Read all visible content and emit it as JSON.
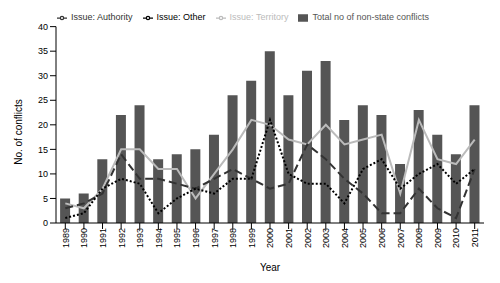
{
  "chart_data": {
    "type": "bar",
    "categories": [
      "1989",
      "1990",
      "1991",
      "1992",
      "1993",
      "1994",
      "1995",
      "1996",
      "1997",
      "1998",
      "1999",
      "2000",
      "2001",
      "2002",
      "2003",
      "2004",
      "2005",
      "2006",
      "2007",
      "2008",
      "2009",
      "2010",
      "2011"
    ],
    "series": [
      {
        "name": "Total no of non-state conflicts",
        "type": "bar",
        "color": "#555555",
        "values": [
          5,
          6,
          13,
          22,
          24,
          13,
          14,
          15,
          18,
          26,
          29,
          35,
          26,
          31,
          33,
          21,
          24,
          22,
          12,
          23,
          18,
          14,
          24
        ]
      },
      {
        "name": "Issue: Territory",
        "type": "line",
        "line_style": "solid",
        "color": "#bbbbbb",
        "values": [
          4,
          3,
          7,
          15,
          15,
          11,
          11,
          5,
          10,
          15,
          21,
          20,
          17,
          16,
          20,
          16,
          17,
          18,
          6,
          21,
          13,
          12,
          17
        ]
      },
      {
        "name": "Issue: Authority",
        "type": "line",
        "line_style": "dashed",
        "color": "#333333",
        "values": [
          3,
          4,
          6,
          14,
          9,
          9,
          8,
          7,
          9,
          11,
          9,
          7,
          8,
          16,
          13,
          9,
          6,
          2,
          2,
          7,
          3,
          1,
          11
        ]
      },
      {
        "name": "Issue: Other",
        "type": "line",
        "line_style": "dotted",
        "color": "#000000",
        "values": [
          1,
          2,
          7,
          9,
          8,
          2,
          5,
          7,
          6,
          9,
          9,
          21,
          10,
          8,
          8,
          4,
          11,
          13,
          7,
          10,
          12,
          8,
          11
        ]
      }
    ],
    "x_label": "Year",
    "y_label": "No. of conflicts",
    "ylim": [
      0,
      40
    ],
    "yticks": [
      0,
      5,
      10,
      15,
      20,
      25,
      30,
      35,
      40
    ],
    "legend": "top",
    "grid": false
  }
}
